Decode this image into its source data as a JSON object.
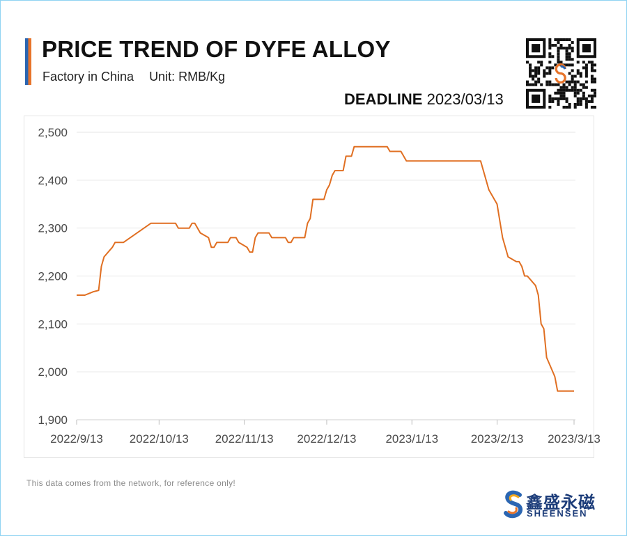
{
  "header": {
    "title": "PRICE TREND OF DYFE ALLOY",
    "subtitle_factory": "Factory in China",
    "subtitle_unit": "Unit: RMB/Kg",
    "deadline_label": "DEADLINE",
    "deadline_date": "2023/03/13"
  },
  "footer": {
    "disclaimer": "This data comes from the network, for reference only!",
    "brand_cn": "鑫盛永磁",
    "brand_en": "SHEENSEN"
  },
  "colors": {
    "line": "#e06f22",
    "accent_blue": "#2b66b2",
    "accent_orange": "#e8742a",
    "grid": "#e6e6e6"
  },
  "icons": {
    "qr": "qr-code-icon",
    "brand_logo": "sheensen-s-logo-icon"
  },
  "chart_data": {
    "type": "line",
    "title": "PRICE TREND OF DYFE ALLOY",
    "xlabel": "",
    "ylabel": "",
    "unit": "RMB/Kg",
    "ylim": [
      1900,
      2500
    ],
    "yticks": [
      1900,
      2000,
      2100,
      2200,
      2300,
      2400,
      2500
    ],
    "ytick_labels": [
      "1,900",
      "2,000",
      "2,100",
      "2,200",
      "2,300",
      "2,400",
      "2,500"
    ],
    "xlim": [
      "2022-09-13",
      "2023-03-13"
    ],
    "xticks": [
      "2022-09-13",
      "2022-10-13",
      "2022-11-13",
      "2022-12-13",
      "2023-01-13",
      "2023-02-13",
      "2023-03-13"
    ],
    "xtick_labels": [
      "2022/9/13",
      "2022/10/13",
      "2022/11/13",
      "2022/12/13",
      "2023/1/13",
      "2023/2/13",
      "2023/3/13"
    ],
    "grid": true,
    "legend": "none",
    "series": [
      {
        "points": [
          [
            "2022-09-13",
            2160
          ],
          [
            "2022-09-16",
            2160
          ],
          [
            "2022-09-19",
            2167
          ],
          [
            "2022-09-21",
            2170
          ],
          [
            "2022-09-22",
            2220
          ],
          [
            "2022-09-23",
            2240
          ],
          [
            "2022-09-26",
            2260
          ],
          [
            "2022-09-27",
            2270
          ],
          [
            "2022-09-30",
            2270
          ],
          [
            "2022-10-10",
            2310
          ],
          [
            "2022-10-19",
            2310
          ],
          [
            "2022-10-20",
            2300
          ],
          [
            "2022-10-24",
            2300
          ],
          [
            "2022-10-25",
            2310
          ],
          [
            "2022-10-26",
            2310
          ],
          [
            "2022-10-28",
            2290
          ],
          [
            "2022-10-31",
            2280
          ],
          [
            "2022-11-01",
            2260
          ],
          [
            "2022-11-02",
            2260
          ],
          [
            "2022-11-03",
            2270
          ],
          [
            "2022-11-07",
            2270
          ],
          [
            "2022-11-08",
            2280
          ],
          [
            "2022-11-10",
            2280
          ],
          [
            "2022-11-11",
            2270
          ],
          [
            "2022-11-14",
            2260
          ],
          [
            "2022-11-15",
            2250
          ],
          [
            "2022-11-16",
            2250
          ],
          [
            "2022-11-17",
            2280
          ],
          [
            "2022-11-18",
            2290
          ],
          [
            "2022-11-22",
            2290
          ],
          [
            "2022-11-23",
            2280
          ],
          [
            "2022-11-28",
            2280
          ],
          [
            "2022-11-29",
            2270
          ],
          [
            "2022-11-30",
            2270
          ],
          [
            "2022-12-01",
            2280
          ],
          [
            "2022-12-05",
            2280
          ],
          [
            "2022-12-06",
            2310
          ],
          [
            "2022-12-07",
            2320
          ],
          [
            "2022-12-08",
            2360
          ],
          [
            "2022-12-12",
            2360
          ],
          [
            "2022-12-13",
            2380
          ],
          [
            "2022-12-14",
            2390
          ],
          [
            "2022-12-15",
            2410
          ],
          [
            "2022-12-16",
            2420
          ],
          [
            "2022-12-19",
            2420
          ],
          [
            "2022-12-20",
            2450
          ],
          [
            "2022-12-22",
            2450
          ],
          [
            "2022-12-23",
            2470
          ],
          [
            "2023-01-04",
            2470
          ],
          [
            "2023-01-05",
            2460
          ],
          [
            "2023-01-09",
            2460
          ],
          [
            "2023-01-11",
            2440
          ],
          [
            "2023-02-07",
            2440
          ],
          [
            "2023-02-10",
            2380
          ],
          [
            "2023-02-13",
            2350
          ],
          [
            "2023-02-15",
            2280
          ],
          [
            "2023-02-17",
            2240
          ],
          [
            "2023-02-20",
            2230
          ],
          [
            "2023-02-21",
            2230
          ],
          [
            "2023-02-22",
            2220
          ],
          [
            "2023-02-23",
            2200
          ],
          [
            "2023-02-24",
            2200
          ],
          [
            "2023-02-27",
            2180
          ],
          [
            "2023-02-28",
            2160
          ],
          [
            "2023-03-01",
            2100
          ],
          [
            "2023-03-02",
            2090
          ],
          [
            "2023-03-03",
            2030
          ],
          [
            "2023-03-06",
            1990
          ],
          [
            "2023-03-07",
            1960
          ],
          [
            "2023-03-13",
            1960
          ]
        ]
      }
    ]
  }
}
